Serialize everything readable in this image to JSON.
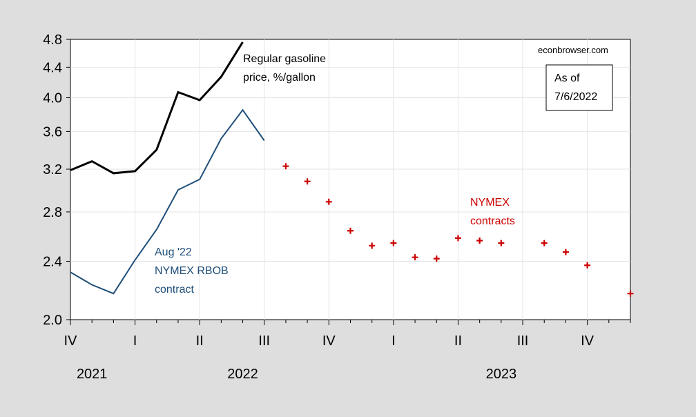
{
  "chart_data": {
    "type": "line",
    "y_scale": "log",
    "ylim": [
      2.0,
      4.8
    ],
    "y_ticks": [
      {
        "value": 2.0,
        "label": "2.0"
      },
      {
        "value": 2.4,
        "label": "2.4"
      },
      {
        "value": 2.8,
        "label": "2.8"
      },
      {
        "value": 3.2,
        "label": "3.2"
      },
      {
        "value": 3.6,
        "label": "3.6"
      },
      {
        "value": 4.0,
        "label": "4.0"
      },
      {
        "value": 4.4,
        "label": "4.4"
      },
      {
        "value": 4.8,
        "label": "4.8"
      }
    ],
    "x_months": [
      "2021-10",
      "2021-11",
      "2021-12",
      "2022-01",
      "2022-02",
      "2022-03",
      "2022-04",
      "2022-05",
      "2022-06",
      "2022-07",
      "2022-08",
      "2022-09",
      "2022-10",
      "2022-11",
      "2022-12",
      "2023-01",
      "2023-02",
      "2023-03",
      "2023-04",
      "2023-05",
      "2023-06",
      "2023-07",
      "2023-08",
      "2023-09",
      "2023-10",
      "2023-11",
      "2023-12"
    ],
    "quarter_labels": [
      {
        "label": "IV",
        "month": "2021-10"
      },
      {
        "label": "I",
        "month": "2022-01"
      },
      {
        "label": "II",
        "month": "2022-04"
      },
      {
        "label": "III",
        "month": "2022-07"
      },
      {
        "label": "IV",
        "month": "2022-10"
      },
      {
        "label": "I",
        "month": "2023-01"
      },
      {
        "label": "II",
        "month": "2023-04"
      },
      {
        "label": "III",
        "month": "2023-07"
      },
      {
        "label": "IV",
        "month": "2023-10"
      }
    ],
    "year_labels": [
      {
        "label": "2021",
        "month": "2021-11"
      },
      {
        "label": "2022",
        "month": "2022-06"
      },
      {
        "label": "2023",
        "month": "2023-06"
      }
    ],
    "grid": true,
    "series": [
      {
        "label": "Regular gasoline price",
        "style": "line",
        "color": "#000000",
        "x": [
          "2021-10",
          "2021-11",
          "2021-12",
          "2022-01",
          "2022-02",
          "2022-03",
          "2022-04",
          "2022-05",
          "2022-06"
        ],
        "y": [
          3.19,
          3.28,
          3.16,
          3.18,
          3.4,
          4.07,
          3.97,
          4.27,
          4.76
        ]
      },
      {
        "label": "Aug '22 NYMEX RBOB contract",
        "style": "line",
        "color": "#1f4e79",
        "x": [
          "2021-10",
          "2021-11",
          "2021-12",
          "2022-01",
          "2022-02",
          "2022-03",
          "2022-04",
          "2022-05",
          "2022-06",
          "2022-07"
        ],
        "y": [
          2.32,
          2.23,
          2.17,
          2.41,
          2.65,
          3.0,
          3.1,
          3.52,
          3.85,
          3.5
        ]
      },
      {
        "label": "NYMEX contracts",
        "style": "marker",
        "color": "#cc0000",
        "x": [
          "2022-08",
          "2022-09",
          "2022-10",
          "2022-11",
          "2022-12",
          "2023-01",
          "2023-02",
          "2023-03",
          "2023-04",
          "2023-05",
          "2023-06",
          "2023-08",
          "2023-09",
          "2023-10",
          "2023-12"
        ],
        "y": [
          3.23,
          3.08,
          2.89,
          2.64,
          2.52,
          2.54,
          2.43,
          2.42,
          2.58,
          2.56,
          2.54,
          2.54,
          2.47,
          2.37,
          2.17
        ]
      }
    ],
    "annotations": {
      "gasoline_line1": "Regular gasoline",
      "gasoline_line2": "price, %/gallon",
      "rbob_line1": "Aug '22",
      "rbob_line2": "NYMEX RBOB",
      "rbob_line3": "contract",
      "nymex_line1": "NYMEX",
      "nymex_line2": "contracts",
      "source": "econbrowser.com",
      "asof_line1": "As of",
      "asof_line2": "7/6/2022"
    },
    "colors": {
      "gasoline": "#000000",
      "rbob": "#1f4e79",
      "nymex": "#cc0000",
      "background": "#dedede",
      "plot": "#ffffff",
      "grid": "#e4e4e4"
    }
  }
}
